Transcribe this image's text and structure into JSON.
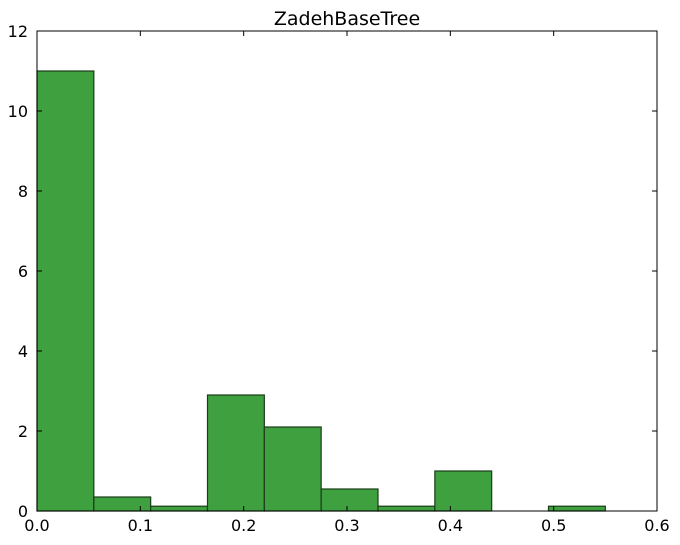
{
  "chart_data": {
    "type": "bar",
    "title": "ZadehBaseTree",
    "xlabel": "",
    "ylabel": "",
    "xlim": [
      0.0,
      0.6
    ],
    "ylim": [
      0,
      12
    ],
    "xticks": [
      "0.0",
      "0.1",
      "0.2",
      "0.3",
      "0.4",
      "0.5",
      "0.6"
    ],
    "yticks": [
      "0",
      "2",
      "4",
      "6",
      "8",
      "10",
      "12"
    ],
    "bins": [
      {
        "x0": 0.0,
        "x1": 0.055,
        "value": 11.0
      },
      {
        "x0": 0.055,
        "x1": 0.11,
        "value": 0.35
      },
      {
        "x0": 0.11,
        "x1": 0.165,
        "value": 0.12
      },
      {
        "x0": 0.165,
        "x1": 0.22,
        "value": 2.9
      },
      {
        "x0": 0.22,
        "x1": 0.275,
        "value": 2.1
      },
      {
        "x0": 0.275,
        "x1": 0.33,
        "value": 0.55
      },
      {
        "x0": 0.33,
        "x1": 0.385,
        "value": 0.12
      },
      {
        "x0": 0.385,
        "x1": 0.44,
        "value": 1.0
      },
      {
        "x0": 0.44,
        "x1": 0.495,
        "value": 0.0
      },
      {
        "x0": 0.495,
        "x1": 0.55,
        "value": 0.12
      }
    ],
    "grid": false,
    "colors": {
      "bar_fill": "#3fa03f",
      "bar_edge": "#1a3d1a"
    }
  }
}
